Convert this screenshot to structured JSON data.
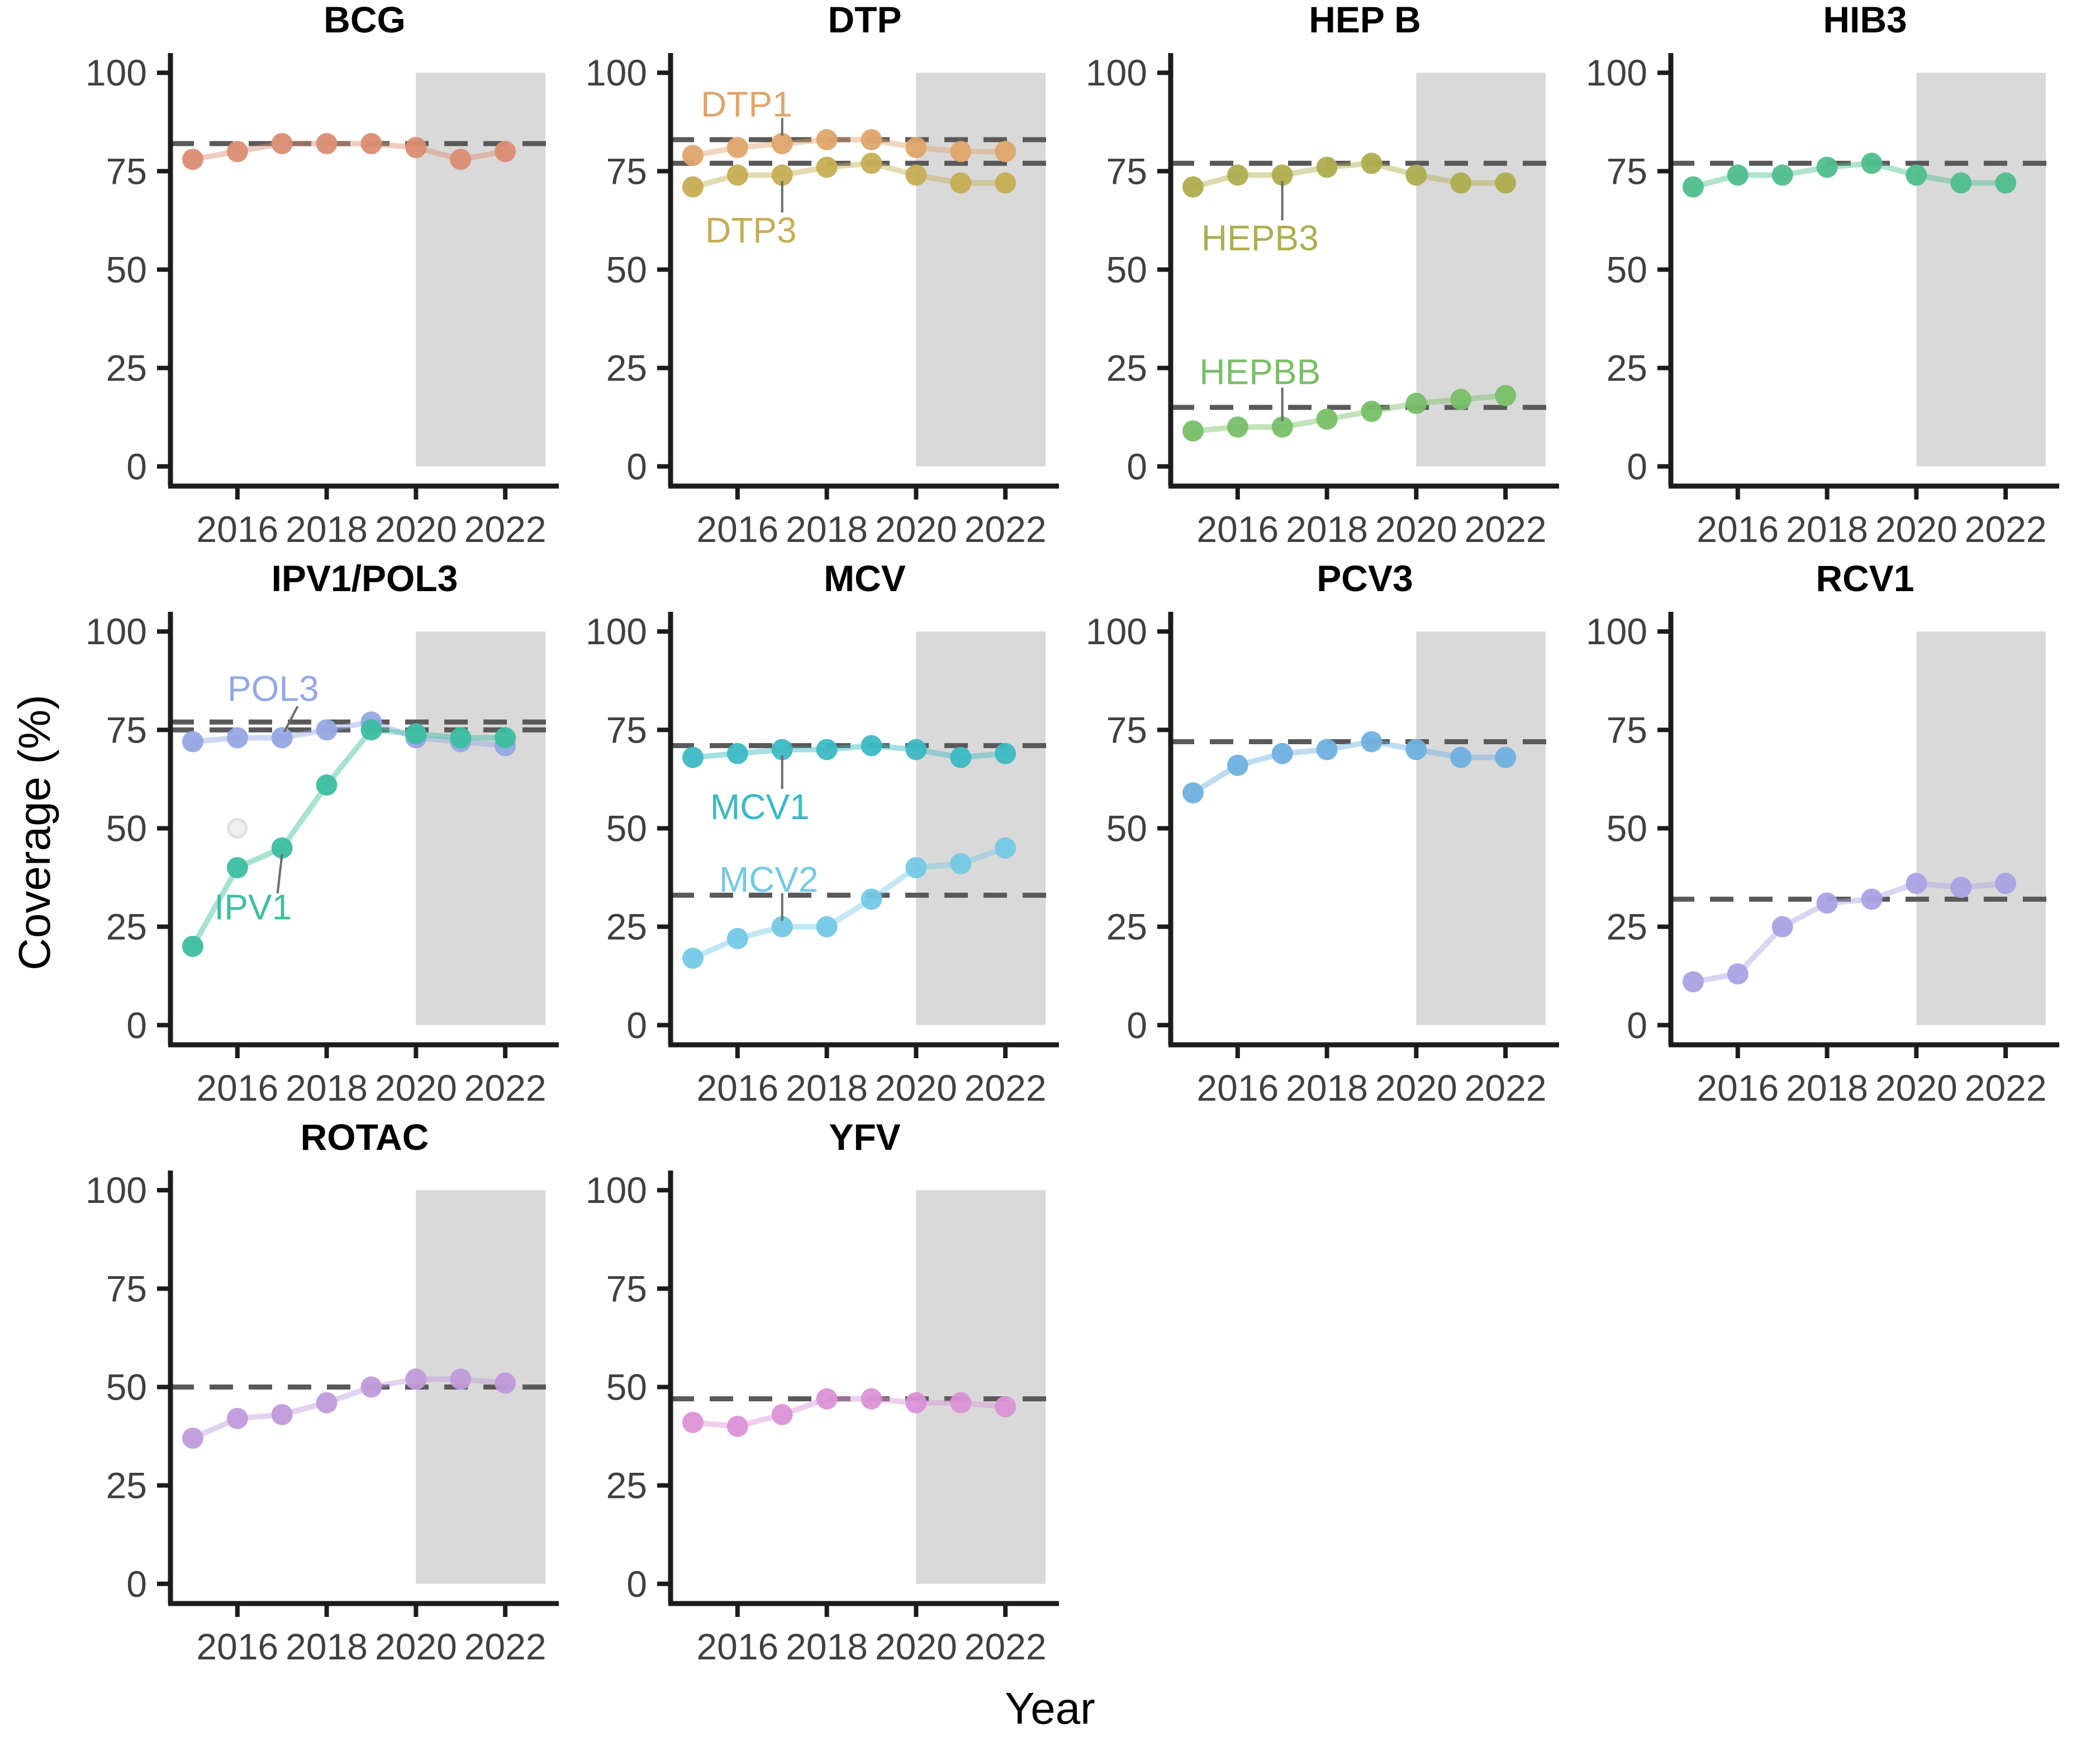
{
  "figure": {
    "y_axis_label": "Coverage (%)",
    "x_axis_label": "Year",
    "years": [
      2015,
      2016,
      2017,
      2018,
      2019,
      2020,
      2021,
      2022
    ],
    "x_ticks": [
      "2016",
      "2018",
      "2020",
      "2022"
    ],
    "x_tick_values": [
      2016,
      2018,
      2020,
      2022
    ],
    "y_ticks": [
      "0",
      "25",
      "50",
      "75",
      "100"
    ],
    "y_tick_values": [
      0,
      25,
      50,
      75,
      100
    ],
    "x_range": [
      2014.5,
      2023.2
    ],
    "y_range": [
      0,
      100
    ],
    "shaded_period": {
      "start": 2020,
      "end": 2022.9,
      "color": "#d9d9d9"
    },
    "reference_line_color": "#595959",
    "axis_color": "#1c1c1c",
    "tick_label_color": "#404040",
    "annotation_line_color": "#6b6b6b"
  },
  "chart_data": [
    {
      "type": "line",
      "title": "BCG",
      "targets": [
        82
      ],
      "series": [
        {
          "name": "BCG",
          "color": "#DB8D73",
          "values": [
            78,
            80,
            82,
            82,
            82,
            81,
            78,
            80
          ]
        }
      ]
    },
    {
      "type": "line",
      "title": "DTP",
      "targets": [
        83,
        77
      ],
      "series": [
        {
          "name": "DTP1",
          "color": "#DFA56C",
          "values": [
            79,
            81,
            82,
            83,
            83,
            81,
            80,
            80
          ],
          "label": {
            "text": "DTP1",
            "x": 2016.2,
            "y": 92,
            "line": [
              2017,
              88.5,
              2017,
              84
            ]
          }
        },
        {
          "name": "DTP3",
          "color": "#C6AD55",
          "values": [
            71,
            74,
            74,
            76,
            77,
            74,
            72,
            72
          ],
          "label": {
            "text": "DTP3",
            "x": 2016.3,
            "y": 60,
            "line": [
              2017,
              64.5,
              2017,
              72.5
            ]
          }
        }
      ]
    },
    {
      "type": "line",
      "title": "HEP B",
      "targets": [
        77,
        15
      ],
      "series": [
        {
          "name": "HEPB3",
          "color": "#AFAD4E",
          "values": [
            71,
            74,
            74,
            76,
            77,
            74,
            72,
            72
          ],
          "label": {
            "text": "HEPB3",
            "x": 2016.5,
            "y": 58,
            "line": [
              2017,
              62.5,
              2017,
              72.5
            ]
          }
        },
        {
          "name": "HEPBB",
          "color": "#78BF67",
          "values": [
            9,
            10,
            10,
            12,
            14,
            16,
            17,
            18
          ],
          "label": {
            "text": "HEPBB",
            "x": 2016.5,
            "y": 24,
            "line": [
              2017,
              20,
              2017,
              11.5
            ]
          }
        }
      ]
    },
    {
      "type": "line",
      "title": "HIB3",
      "targets": [
        77
      ],
      "series": [
        {
          "name": "HIB3",
          "color": "#4FBE8E",
          "values": [
            71,
            74,
            74,
            76,
            77,
            74,
            72,
            72
          ]
        }
      ]
    },
    {
      "type": "line",
      "title": "IPV1/POL3",
      "targets": [
        77,
        75
      ],
      "ghost_point": {
        "x": 2016,
        "y": 50,
        "color": "#efefef",
        "stroke": "#e0e0e0"
      },
      "series": [
        {
          "name": "POL3",
          "color": "#93A8E4",
          "values": [
            72,
            73,
            73,
            75,
            77,
            73,
            72,
            71
          ],
          "label": {
            "text": "POL3",
            "x": 2016.8,
            "y": 85.5,
            "line": [
              2017.35,
              81,
              2017.05,
              74.5
            ]
          }
        },
        {
          "name": "IPV1",
          "color": "#3DBEA0",
          "values": [
            20,
            40,
            45,
            61,
            75,
            74,
            73,
            73
          ],
          "label": {
            "text": "IPV1",
            "x": 2016.35,
            "y": 30,
            "line": [
              2016.9,
              33.5,
              2017,
              43.5
            ]
          }
        }
      ]
    },
    {
      "type": "line",
      "title": "MCV",
      "targets": [
        71,
        33
      ],
      "series": [
        {
          "name": "MCV1",
          "color": "#3CB9C4",
          "values": [
            68,
            69,
            70,
            70,
            71,
            70,
            68,
            69
          ],
          "label": {
            "text": "MCV1",
            "x": 2016.5,
            "y": 55.5,
            "line": [
              2017,
              60,
              2017,
              68.5
            ]
          }
        },
        {
          "name": "MCV2",
          "color": "#74C9E5",
          "values": [
            17,
            22,
            25,
            25,
            32,
            40,
            41,
            45
          ],
          "label": {
            "text": "MCV2",
            "x": 2016.7,
            "y": 37,
            "line": [
              2017,
              33.5,
              2017,
              26.5
            ]
          }
        }
      ]
    },
    {
      "type": "line",
      "title": "PCV3",
      "targets": [
        72
      ],
      "series": [
        {
          "name": "PCV3",
          "color": "#6FB1DF",
          "values": [
            59,
            66,
            69,
            70,
            72,
            70,
            68,
            68
          ]
        }
      ]
    },
    {
      "type": "line",
      "title": "RCV1",
      "targets": [
        32
      ],
      "series": [
        {
          "name": "RCV1",
          "color": "#A9A3E4",
          "values": [
            11,
            13,
            25,
            31,
            32,
            36,
            35,
            36
          ]
        }
      ]
    },
    {
      "type": "line",
      "title": "ROTAC",
      "targets": [
        50
      ],
      "series": [
        {
          "name": "ROTAC",
          "color": "#C09BDB",
          "values": [
            37,
            42,
            43,
            46,
            50,
            52,
            52,
            51
          ]
        }
      ]
    },
    {
      "type": "line",
      "title": "YFV",
      "targets": [
        47
      ],
      "series": [
        {
          "name": "YFV",
          "color": "#DC92D7",
          "values": [
            41,
            40,
            43,
            47,
            47,
            46,
            46,
            45
          ]
        }
      ]
    }
  ]
}
